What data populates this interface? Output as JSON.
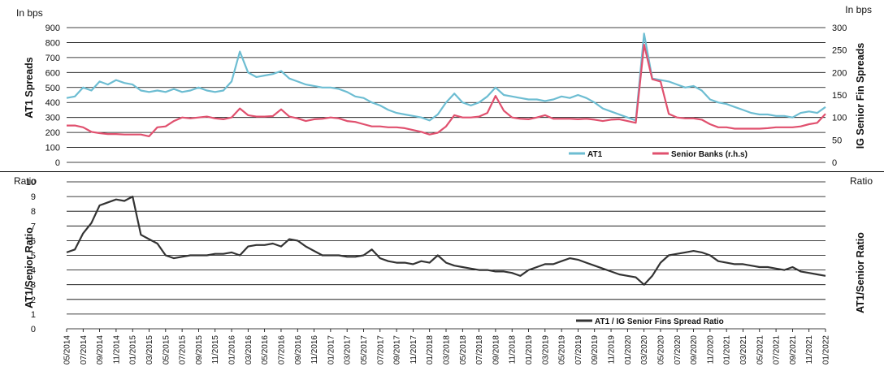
{
  "colors": {
    "at1": "#6dbdd2",
    "senior": "#e0506e",
    "ratio": "#333333",
    "grid": "#000000"
  },
  "chart_data": [
    {
      "type": "line",
      "panel": "top",
      "left_unit_label": "In bps",
      "right_unit_label": "In bps",
      "ylabel": "AT1 Spreads",
      "y2label": "IG Senior Fin Spreads",
      "ylim": [
        0,
        900
      ],
      "y2lim": [
        0,
        300
      ],
      "yticks": [
        "900",
        "800",
        "700",
        "600",
        "500",
        "400",
        "300",
        "200",
        "100",
        "0"
      ],
      "y2ticks": [
        "300",
        "250",
        "200",
        "150",
        "100",
        "50",
        "0"
      ],
      "x_start": "2014-05",
      "x_end": "2022-01",
      "grid": true,
      "legend_position": "bottom-right",
      "series": [
        {
          "name": "AT1",
          "axis": "left",
          "x": [
            "05/2014",
            "06/2014",
            "07/2014",
            "08/2014",
            "09/2014",
            "10/2014",
            "11/2014",
            "12/2014",
            "01/2015",
            "02/2015",
            "03/2015",
            "04/2015",
            "05/2015",
            "06/2015",
            "07/2015",
            "08/2015",
            "09/2015",
            "10/2015",
            "11/2015",
            "12/2015",
            "01/2016",
            "02/2016",
            "03/2016",
            "04/2016",
            "05/2016",
            "06/2016",
            "07/2016",
            "08/2016",
            "09/2016",
            "10/2016",
            "11/2016",
            "12/2016",
            "01/2017",
            "02/2017",
            "03/2017",
            "04/2017",
            "05/2017",
            "06/2017",
            "07/2017",
            "08/2017",
            "09/2017",
            "10/2017",
            "11/2017",
            "12/2017",
            "01/2018",
            "02/2018",
            "03/2018",
            "04/2018",
            "05/2018",
            "06/2018",
            "07/2018",
            "08/2018",
            "09/2018",
            "10/2018",
            "11/2018",
            "12/2018",
            "01/2019",
            "02/2019",
            "03/2019",
            "04/2019",
            "05/2019",
            "06/2019",
            "07/2019",
            "08/2019",
            "09/2019",
            "10/2019",
            "11/2019",
            "12/2019",
            "01/2020",
            "02/2020",
            "03/2020",
            "04/2020",
            "05/2020",
            "06/2020",
            "07/2020",
            "08/2020",
            "09/2020",
            "10/2020",
            "11/2020",
            "12/2020",
            "01/2021",
            "02/2021",
            "03/2021",
            "04/2021",
            "05/2021",
            "06/2021",
            "07/2021",
            "08/2021",
            "09/2021",
            "10/2021",
            "11/2021",
            "12/2021",
            "01/2022"
          ],
          "values": [
            430,
            440,
            500,
            480,
            540,
            520,
            550,
            530,
            520,
            480,
            470,
            480,
            470,
            490,
            470,
            480,
            500,
            480,
            470,
            480,
            540,
            740,
            600,
            570,
            580,
            590,
            610,
            560,
            540,
            520,
            510,
            500,
            500,
            490,
            470,
            440,
            430,
            400,
            380,
            350,
            330,
            320,
            310,
            300,
            280,
            320,
            400,
            460,
            400,
            380,
            400,
            440,
            500,
            450,
            440,
            430,
            420,
            420,
            410,
            420,
            440,
            430,
            450,
            430,
            400,
            360,
            340,
            320,
            300,
            280,
            860,
            560,
            550,
            540,
            520,
            500,
            510,
            480,
            420,
            400,
            390,
            370,
            350,
            330,
            320,
            320,
            310,
            310,
            300,
            330,
            340,
            330,
            370
          ]
        },
        {
          "name": "Senior Banks (r.h.s)",
          "axis": "right",
          "x": [
            "05/2014",
            "06/2014",
            "07/2014",
            "08/2014",
            "09/2014",
            "10/2014",
            "11/2014",
            "12/2014",
            "01/2015",
            "02/2015",
            "03/2015",
            "04/2015",
            "05/2015",
            "06/2015",
            "07/2015",
            "08/2015",
            "09/2015",
            "10/2015",
            "11/2015",
            "12/2015",
            "01/2016",
            "02/2016",
            "03/2016",
            "04/2016",
            "05/2016",
            "06/2016",
            "07/2016",
            "08/2016",
            "09/2016",
            "10/2016",
            "11/2016",
            "12/2016",
            "01/2017",
            "02/2017",
            "03/2017",
            "04/2017",
            "05/2017",
            "06/2017",
            "07/2017",
            "08/2017",
            "09/2017",
            "10/2017",
            "11/2017",
            "12/2017",
            "01/2018",
            "02/2018",
            "03/2018",
            "04/2018",
            "05/2018",
            "06/2018",
            "07/2018",
            "08/2018",
            "09/2018",
            "10/2018",
            "11/2018",
            "12/2018",
            "01/2019",
            "02/2019",
            "03/2019",
            "04/2019",
            "05/2019",
            "06/2019",
            "07/2019",
            "08/2019",
            "09/2019",
            "10/2019",
            "11/2019",
            "12/2019",
            "01/2020",
            "02/2020",
            "03/2020",
            "04/2020",
            "05/2020",
            "06/2020",
            "07/2020",
            "08/2020",
            "09/2020",
            "10/2020",
            "11/2020",
            "12/2020",
            "01/2021",
            "02/2021",
            "03/2021",
            "04/2021",
            "05/2021",
            "06/2021",
            "07/2021",
            "08/2021",
            "09/2021",
            "10/2021",
            "11/2021",
            "12/2021",
            "01/2022"
          ],
          "values": [
            82,
            82,
            78,
            68,
            65,
            63,
            63,
            62,
            62,
            62,
            58,
            78,
            80,
            92,
            100,
            98,
            100,
            102,
            98,
            96,
            100,
            120,
            105,
            102,
            102,
            103,
            118,
            102,
            98,
            92,
            96,
            97,
            100,
            98,
            92,
            90,
            85,
            80,
            80,
            78,
            78,
            76,
            72,
            68,
            62,
            66,
            80,
            105,
            100,
            100,
            102,
            110,
            148,
            115,
            100,
            97,
            96,
            100,
            105,
            97,
            97,
            97,
            96,
            97,
            95,
            92,
            95,
            96,
            92,
            88,
            262,
            185,
            180,
            108,
            100,
            98,
            98,
            95,
            85,
            78,
            78,
            75,
            75,
            75,
            75,
            76,
            78,
            78,
            78,
            80,
            85,
            88,
            108
          ]
        }
      ]
    },
    {
      "type": "line",
      "panel": "bottom",
      "left_unit_label": "Ratio",
      "right_unit_label": "Ratio",
      "ylabel": "AT1/Senior Ratio",
      "y2label": "AT1/Senior Ratio",
      "ylim": [
        0,
        10
      ],
      "yticks": [
        "10",
        "9",
        "8",
        "7",
        "6",
        "5",
        "4",
        "3",
        "2",
        "1",
        "0"
      ],
      "grid": true,
      "legend_position": "bottom-right",
      "series": [
        {
          "name": "AT1 / IG Senior Fins Spread Ratio",
          "x": [
            "05/2014",
            "06/2014",
            "07/2014",
            "08/2014",
            "09/2014",
            "10/2014",
            "11/2014",
            "12/2014",
            "01/2015",
            "02/2015",
            "03/2015",
            "04/2015",
            "05/2015",
            "06/2015",
            "07/2015",
            "08/2015",
            "09/2015",
            "10/2015",
            "11/2015",
            "12/2015",
            "01/2016",
            "02/2016",
            "03/2016",
            "04/2016",
            "05/2016",
            "06/2016",
            "07/2016",
            "08/2016",
            "09/2016",
            "10/2016",
            "11/2016",
            "12/2016",
            "01/2017",
            "02/2017",
            "03/2017",
            "04/2017",
            "05/2017",
            "06/2017",
            "07/2017",
            "08/2017",
            "09/2017",
            "10/2017",
            "11/2017",
            "12/2017",
            "01/2018",
            "02/2018",
            "03/2018",
            "04/2018",
            "05/2018",
            "06/2018",
            "07/2018",
            "08/2018",
            "09/2018",
            "10/2018",
            "11/2018",
            "12/2018",
            "01/2019",
            "02/2019",
            "03/2019",
            "04/2019",
            "05/2019",
            "06/2019",
            "07/2019",
            "08/2019",
            "09/2019",
            "10/2019",
            "11/2019",
            "12/2019",
            "01/2020",
            "02/2020",
            "03/2020",
            "04/2020",
            "05/2020",
            "06/2020",
            "07/2020",
            "08/2020",
            "09/2020",
            "10/2020",
            "11/2020",
            "12/2020",
            "01/2021",
            "02/2021",
            "03/2021",
            "04/2021",
            "05/2021",
            "06/2021",
            "07/2021",
            "08/2021",
            "09/2021",
            "10/2021",
            "11/2021",
            "12/2021",
            "01/2022"
          ],
          "values": [
            5.2,
            5.4,
            6.5,
            7.2,
            8.4,
            8.6,
            8.8,
            8.7,
            9.0,
            6.4,
            6.1,
            5.8,
            5.0,
            4.8,
            4.9,
            5.0,
            5.0,
            5.0,
            5.1,
            5.1,
            5.2,
            5.0,
            5.6,
            5.7,
            5.7,
            5.8,
            5.6,
            6.1,
            6.0,
            5.6,
            5.3,
            5.0,
            5.0,
            5.0,
            4.9,
            4.9,
            5.0,
            5.4,
            4.8,
            4.6,
            4.5,
            4.5,
            4.4,
            4.6,
            4.5,
            5.0,
            4.5,
            4.3,
            4.2,
            4.1,
            4.0,
            4.0,
            3.9,
            3.9,
            3.8,
            3.6,
            4.0,
            4.2,
            4.4,
            4.4,
            4.6,
            4.8,
            4.7,
            4.5,
            4.3,
            4.1,
            3.9,
            3.7,
            3.6,
            3.5,
            3.0,
            3.6,
            4.5,
            5.0,
            5.1,
            5.2,
            5.3,
            5.2,
            5.0,
            4.6,
            4.5,
            4.4,
            4.4,
            4.3,
            4.2,
            4.2,
            4.1,
            4.0,
            4.2,
            3.9,
            3.8,
            3.7,
            3.6
          ]
        }
      ]
    }
  ],
  "x_tick_labels": [
    "05/2014",
    "07/2014",
    "09/2014",
    "11/2014",
    "01/2015",
    "03/2015",
    "05/2015",
    "07/2015",
    "09/2015",
    "11/2015",
    "01/2016",
    "03/2016",
    "05/2016",
    "07/2016",
    "09/2016",
    "11/2016",
    "01/2017",
    "03/2017",
    "05/2017",
    "07/2017",
    "09/2017",
    "11/2017",
    "01/2018",
    "03/2018",
    "05/2018",
    "07/2018",
    "09/2018",
    "11/2018",
    "01/2019",
    "03/2019",
    "05/2019",
    "07/2019",
    "09/2019",
    "11/2019",
    "01/2020",
    "03/2020",
    "05/2020",
    "07/2020",
    "09/2020",
    "11/2020",
    "01/2021",
    "03/2021",
    "05/2021",
    "07/2021",
    "09/2021",
    "11/2021",
    "01/2022"
  ]
}
